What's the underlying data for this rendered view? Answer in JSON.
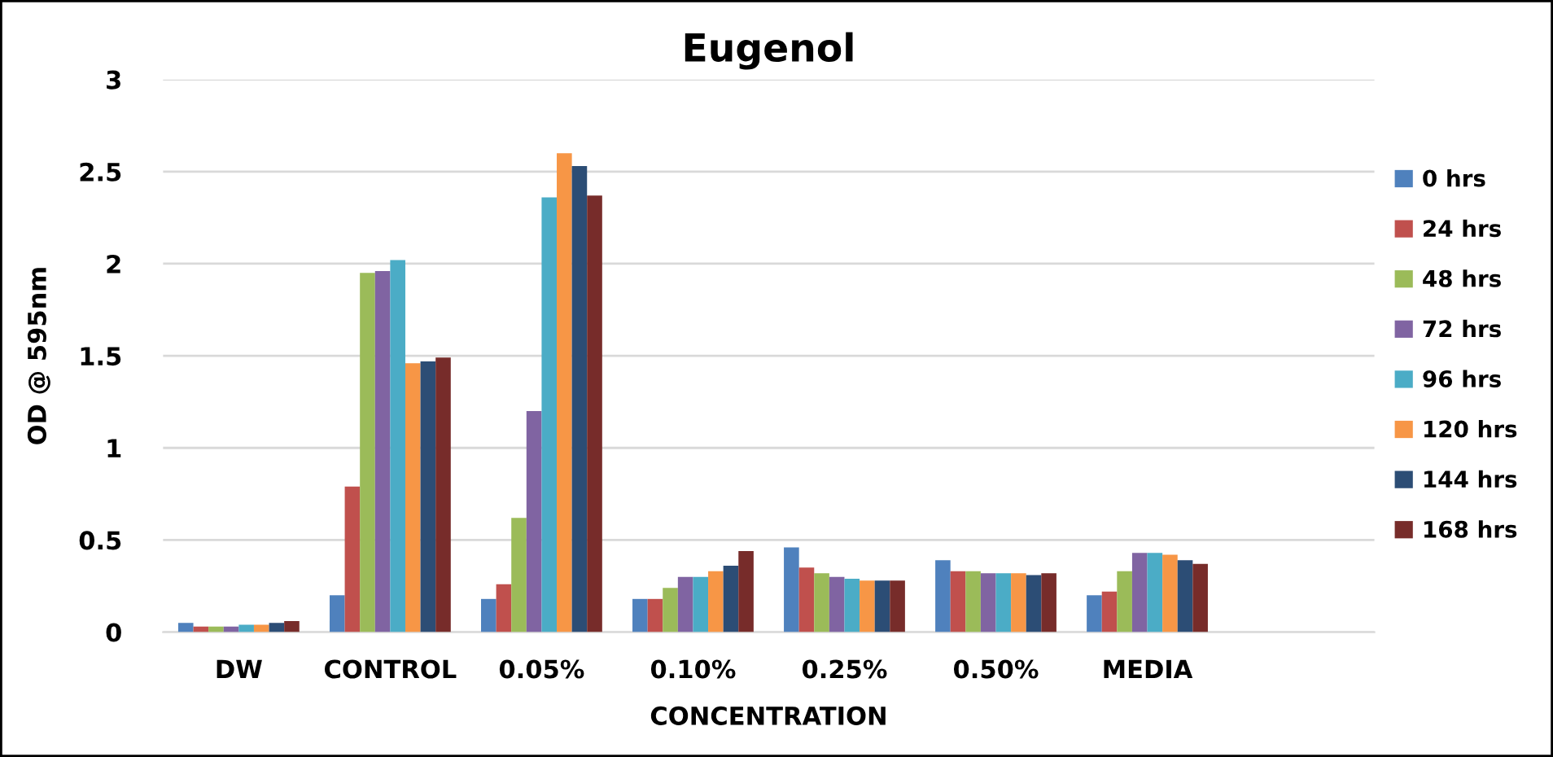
{
  "chart_data": {
    "type": "bar",
    "title": "Eugenol",
    "xlabel": "CONCENTRATION",
    "ylabel": "OD @ 595nm",
    "categories": [
      "DW",
      "CONTROL",
      "0.05%",
      "0.10%",
      "0.25%",
      "0.50%",
      "MEDIA",
      null
    ],
    "series": [
      {
        "name": "0 hrs",
        "color": "#4f81bd",
        "values": [
          0.05,
          0.2,
          0.18,
          0.18,
          0.46,
          0.39,
          0.2,
          null
        ]
      },
      {
        "name": "24 hrs",
        "color": "#c0504d",
        "values": [
          0.03,
          0.79,
          0.26,
          0.18,
          0.35,
          0.33,
          0.22,
          null
        ]
      },
      {
        "name": "48 hrs",
        "color": "#9bbb59",
        "values": [
          0.03,
          1.95,
          0.62,
          0.24,
          0.32,
          0.33,
          0.33,
          null
        ]
      },
      {
        "name": "72 hrs",
        "color": "#8064a2",
        "values": [
          0.03,
          1.96,
          1.2,
          0.3,
          0.3,
          0.32,
          0.43,
          null
        ]
      },
      {
        "name": "96 hrs",
        "color": "#4bacc6",
        "values": [
          0.04,
          2.02,
          2.36,
          0.3,
          0.29,
          0.32,
          0.43,
          null
        ]
      },
      {
        "name": "120 hrs",
        "color": "#f79646",
        "values": [
          0.04,
          1.46,
          2.6,
          0.33,
          0.28,
          0.32,
          0.42,
          null
        ]
      },
      {
        "name": "144 hrs",
        "color": "#2c4d75",
        "values": [
          0.05,
          1.47,
          2.53,
          0.36,
          0.28,
          0.31,
          0.39,
          null
        ]
      },
      {
        "name": "168 hrs",
        "color": "#772c2a",
        "values": [
          0.06,
          1.49,
          2.37,
          0.44,
          0.28,
          0.32,
          0.37,
          null
        ]
      }
    ],
    "ylim": [
      0,
      3
    ],
    "yticks": [
      0,
      0.5,
      1,
      1.5,
      2,
      2.5,
      3
    ],
    "grid": "y",
    "legend": "right"
  }
}
